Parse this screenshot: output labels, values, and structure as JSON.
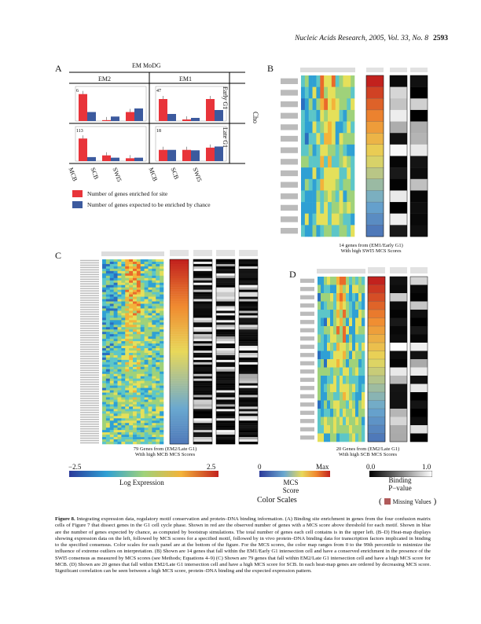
{
  "header": {
    "journal": "Nucleic Acids Research, 2005, Vol. 33, No. 8",
    "page": "2593"
  },
  "panel_a": {
    "label": "A",
    "title": "EM MoDG",
    "col_headers": [
      "EM2",
      "EM1"
    ],
    "row_headers": [
      "Early G1",
      "Late G1"
    ],
    "side_label": "Cho",
    "xticks": [
      "MCB",
      "SCB",
      "SWI5"
    ],
    "colors": {
      "observed": "#e8343a",
      "expected": "#3c5a9e"
    },
    "legend": {
      "observed": "Number of genes enriched for site",
      "expected": "Number of genes expected to be enriched by chance"
    }
  },
  "chart_data": [
    {
      "type": "bar",
      "panel": "EM2 / Early G1",
      "corner_count": "6",
      "categories": [
        "MCB",
        "SCB",
        "SWI5"
      ],
      "series": [
        {
          "values": [
            6,
            0.2,
            2
          ]
        },
        {
          "values": [
            2,
            1,
            2.8
          ]
        }
      ],
      "ylim": [
        0,
        7
      ]
    },
    {
      "type": "bar",
      "panel": "EM1 / Early G1",
      "corner_count": "47",
      "categories": [
        "MCB",
        "SCB",
        "SWI5"
      ],
      "series": [
        {
          "values": [
            14,
            1,
            14
          ]
        },
        {
          "values": [
            4.5,
            2,
            7
          ]
        }
      ],
      "ylim": [
        0,
        20
      ]
    },
    {
      "type": "bar",
      "panel": "EM2 / Late G1",
      "corner_count": "113",
      "categories": [
        "MCB",
        "SCB",
        "SWI5"
      ],
      "series": [
        {
          "values": [
            79,
            20,
            10
          ]
        },
        {
          "values": [
            14,
            12,
            12
          ]
        }
      ],
      "ylim": [
        0,
        110
      ]
    },
    {
      "type": "bar",
      "panel": "EM1 / Late G1",
      "corner_count": "18",
      "categories": [
        "MCB",
        "SCB",
        "SWI5"
      ],
      "series": [
        {
          "values": [
            5,
            5,
            6
          ]
        },
        {
          "values": [
            5,
            4.8,
            6.5
          ]
        }
      ],
      "ylim": [
        0,
        14
      ]
    }
  ],
  "panel_b": {
    "label": "B",
    "caption_line1": "14 genes from (EM1/Early G1)",
    "caption_line2": "With high SWI5 MCS Scores",
    "rows": 14
  },
  "panel_c": {
    "label": "C",
    "caption_line1": "79 Genes from (EM2/Late G1)",
    "caption_line2": "With high MCB MCS Scores",
    "rows": 79
  },
  "panel_d": {
    "label": "D",
    "caption_line1": "20 Genes from (EM2/Late G1)",
    "caption_line2": "With high SCB MCS Scores",
    "rows": 20
  },
  "color_scales": {
    "title": "Color Scales",
    "expression": {
      "min": "−2.5",
      "max": "2.5",
      "label": "Log Expression"
    },
    "mcs": {
      "min": "0",
      "max": "Max",
      "label_line1": "MCS",
      "label_line2": "Score"
    },
    "binding": {
      "min": "0.0",
      "max": "1.0",
      "label_line1": "Binding",
      "label_line2": "P−value"
    },
    "missing": "Missing Values",
    "missing_color": "#b05a5a"
  },
  "caption": {
    "figure_label": "Figure 8.",
    "text": "Integrating expression data, regulatory motif conservation and protein–DNA binding information. (A) Binding site enrichment in genes from the four confusion matrix cells of Figure 7 that dissect genes in the G1 cell cycle phase. Shown in red are the observed number of genes with a MCS score above threshold for each motif. Shown in blue are the number of genes expected by chance, as computed by bootstrap simulations. The total number of genes each cell contains is in the upper left. (B–D) Heat-map displays showing expression data on the left, followed by MCS scores for a specified motif, followed by in vivo protein–DNA binding data for transcription factors implicated in binding to the specified consensus. Color scales for each panel are at the bottom of the figure. For the MCS scores, the color map ranges from 0 to the 99th percentile to minimize the influence of extreme outliers on interpretation. (B) Shown are 14 genes that fall within the EM1/Early G1 intersection cell and have a conserved enrichment in the presence of the SWI5 consensus as measured by MCS scores (see Methods; Equations 4–9) (C) Shown are 79 genes that fall within EM2/Late G1 intersection cell and have a high MCS score for MCB. (D) Shown are 20 genes that fall within EM2/Late G1 intersection cell and have a high MCS score for SCB. In each heat-map genes are ordered by decreasing MCS score. Significant correlation can be seen between a high MCS score, protein–DNA binding and the expected expression pattern."
  }
}
